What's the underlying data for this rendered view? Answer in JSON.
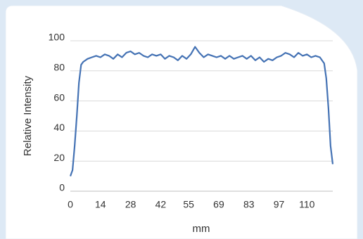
{
  "chart_data": {
    "type": "line",
    "xlabel": "mm",
    "ylabel": "Relative Intensity",
    "x": [
      0,
      1,
      2,
      3,
      4,
      5,
      6,
      8,
      10,
      12,
      14,
      16,
      18,
      20,
      22,
      24,
      26,
      28,
      30,
      32,
      34,
      36,
      38,
      40,
      42,
      44,
      46,
      48,
      50,
      52,
      54,
      56,
      58,
      60,
      62,
      64,
      66,
      68,
      70,
      72,
      74,
      76,
      78,
      80,
      82,
      84,
      86,
      88,
      90,
      92,
      94,
      96,
      98,
      100,
      102,
      104,
      106,
      108,
      110,
      112,
      114,
      116,
      118,
      119,
      120,
      121,
      122
    ],
    "series": [
      {
        "name": "Relative Intensity",
        "color": "#4472b4",
        "values": [
          10,
          14,
          30,
          50,
          72,
          84,
          86,
          88,
          89,
          90,
          89,
          91,
          90,
          88,
          91,
          89,
          92,
          93,
          91,
          92,
          90,
          89,
          91,
          90,
          91,
          88,
          90,
          89,
          87,
          90,
          88,
          91,
          96,
          92,
          89,
          91,
          90,
          89,
          90,
          88,
          90,
          88,
          89,
          90,
          88,
          90,
          87,
          89,
          86,
          88,
          87,
          89,
          90,
          92,
          91,
          89,
          92,
          90,
          91,
          89,
          90,
          89,
          85,
          75,
          55,
          30,
          18
        ]
      }
    ],
    "xlim": [
      0,
      122
    ],
    "xticks": [
      0,
      14,
      28,
      42,
      55,
      69,
      83,
      97,
      110
    ],
    "ylim": [
      0,
      100
    ],
    "yticks": [
      0,
      20,
      40,
      60,
      80,
      100
    ],
    "grid": true
  }
}
